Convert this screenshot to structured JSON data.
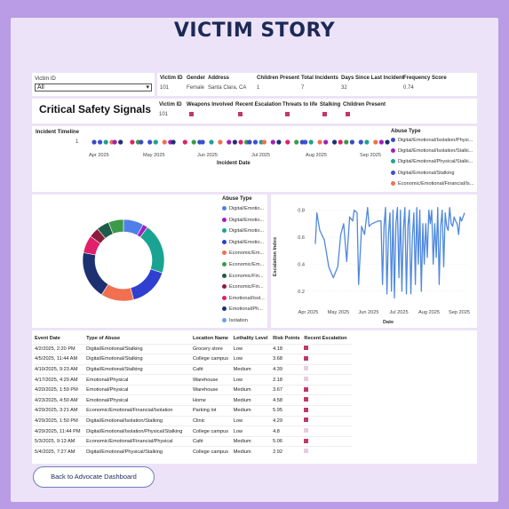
{
  "page": {
    "title": "VICTIM STORY"
  },
  "filter": {
    "label": "Victim ID",
    "selected": "All"
  },
  "profile": {
    "headers": [
      "Victim ID",
      "Gender",
      "Address",
      "Children Present",
      "Total Incidents",
      "Days Since Last Incident",
      "Frequency Score"
    ],
    "values": [
      "101",
      "Female",
      "Santa Clara, CA",
      "1",
      "7",
      "32",
      "0.74"
    ]
  },
  "signals": {
    "title": "Critical Safety Signals",
    "headers": [
      "Victim ID",
      "Weapons Involved",
      "Recent Escalation",
      "Threats to life",
      "Stalking",
      "Children Present"
    ],
    "victim_id": "101"
  },
  "timeline": {
    "title": "Incident Timeline",
    "y_tick": "1",
    "x_ticks": [
      "Apr 2025",
      "May 2025",
      "Jun 2025",
      "Jul 2025",
      "Aug 2025",
      "Sep 2025"
    ],
    "xlabel": "Incident Date",
    "legend_title": "Abuse Type",
    "legend": [
      {
        "label": "Digital/Emotional/Isolation/Physi...",
        "color": "#3b4cc0"
      },
      {
        "label": "Digital/Emotional/Isolation/Stalki...",
        "color": "#a020c0"
      },
      {
        "label": "Digital/Emotional/Physical/Stalki...",
        "color": "#1aa391"
      },
      {
        "label": "Digital/Emotional/Stalking",
        "color": "#3d4fd6"
      },
      {
        "label": "Economic/Emotional/Financial/Is...",
        "color": "#f07050"
      }
    ]
  },
  "donut": {
    "legend_title": "Abuse Type",
    "legend": [
      {
        "label": "Digital/Emotio...",
        "color": "#4f7fe8"
      },
      {
        "label": "Digital/Emotio...",
        "color": "#a020c0"
      },
      {
        "label": "Digital/Emotio...",
        "color": "#1aa391"
      },
      {
        "label": "Digital/Emotio...",
        "color": "#2f3fd0"
      },
      {
        "label": "Economic/Em...",
        "color": "#f07050"
      },
      {
        "label": "Economic/Em...",
        "color": "#3c9a4a"
      },
      {
        "label": "Economic/Fin...",
        "color": "#1d5c4a"
      },
      {
        "label": "Economic/Fin...",
        "color": "#8b1c3c"
      },
      {
        "label": "Emotional/Isol...",
        "color": "#e0206a"
      },
      {
        "label": "Emotional/Ph...",
        "color": "#1d3070"
      },
      {
        "label": "Isolation",
        "color": "#6d9fe6"
      }
    ]
  },
  "chart_data": [
    {
      "type": "pie",
      "labels": [
        "Digital/Emotio...",
        "Digital/Emotio...",
        "Digital/Emotio...",
        "Digital/Emotio...",
        "Economic/Em...",
        "Economic/Em...",
        "Economic/Fin...",
        "Economic/Fin...",
        "Emotional/Isol...",
        "Emotional/Ph...",
        "Isolation"
      ],
      "values": [
        8,
        2,
        20,
        16,
        13,
        6,
        5,
        4,
        7,
        19,
        0
      ]
    },
    {
      "type": "line",
      "ylabel": "Escalation Index",
      "xlabel": "Date",
      "ylim": [
        0.1,
        0.85
      ],
      "yticks": [
        0.2,
        0.4,
        0.6,
        0.8
      ],
      "xticks": [
        "Apr 2025",
        "May 2025",
        "Jun 2025",
        "Jul 2025",
        "Aug 2025",
        "Sep 2025"
      ],
      "points": [
        [
          0.0,
          0.55
        ],
        [
          0.01,
          0.78
        ],
        [
          0.03,
          0.65
        ],
        [
          0.06,
          0.58
        ],
        [
          0.09,
          0.38
        ],
        [
          0.12,
          0.3
        ],
        [
          0.15,
          0.38
        ],
        [
          0.17,
          0.62
        ],
        [
          0.19,
          0.7
        ],
        [
          0.21,
          0.42
        ],
        [
          0.23,
          0.75
        ],
        [
          0.25,
          0.72
        ],
        [
          0.26,
          0.8
        ],
        [
          0.28,
          0.78
        ],
        [
          0.29,
          0.25
        ],
        [
          0.31,
          0.68
        ],
        [
          0.33,
          0.62
        ],
        [
          0.35,
          0.82
        ],
        [
          0.36,
          0.68
        ],
        [
          0.38,
          0.7
        ],
        [
          0.42,
          0.72
        ],
        [
          0.44,
          0.72
        ],
        [
          0.45,
          0.25
        ],
        [
          0.46,
          0.68
        ],
        [
          0.47,
          0.82
        ],
        [
          0.48,
          0.18
        ],
        [
          0.49,
          0.62
        ],
        [
          0.5,
          0.78
        ],
        [
          0.51,
          0.2
        ],
        [
          0.52,
          0.8
        ],
        [
          0.53,
          0.15
        ],
        [
          0.54,
          0.7
        ],
        [
          0.55,
          0.82
        ],
        [
          0.56,
          0.3
        ],
        [
          0.57,
          0.8
        ],
        [
          0.58,
          0.2
        ],
        [
          0.59,
          0.65
        ],
        [
          0.6,
          0.82
        ],
        [
          0.61,
          0.18
        ],
        [
          0.62,
          0.68
        ],
        [
          0.63,
          0.8
        ],
        [
          0.64,
          0.18
        ],
        [
          0.65,
          0.6
        ],
        [
          0.66,
          0.78
        ],
        [
          0.67,
          0.25
        ],
        [
          0.68,
          0.82
        ],
        [
          0.69,
          0.4
        ],
        [
          0.7,
          0.8
        ],
        [
          0.71,
          0.2
        ],
        [
          0.72,
          0.7
        ],
        [
          0.73,
          0.4
        ],
        [
          0.74,
          0.7
        ],
        [
          0.75,
          0.45
        ],
        [
          0.76,
          0.8
        ],
        [
          0.77,
          0.7
        ],
        [
          0.78,
          0.8
        ],
        [
          0.79,
          0.4
        ],
        [
          0.8,
          0.7
        ],
        [
          0.81,
          0.45
        ],
        [
          0.82,
          0.82
        ],
        [
          0.83,
          0.25
        ],
        [
          0.84,
          0.68
        ],
        [
          0.85,
          0.8
        ],
        [
          0.86,
          0.38
        ],
        [
          0.87,
          0.78
        ],
        [
          0.88,
          0.68
        ],
        [
          0.89,
          0.65
        ],
        [
          0.9,
          0.82
        ],
        [
          0.91,
          0.7
        ],
        [
          0.92,
          0.68
        ],
        [
          0.93,
          0.75
        ],
        [
          0.94,
          0.72
        ],
        [
          0.95,
          0.7
        ],
        [
          0.96,
          0.62
        ],
        [
          0.97,
          0.75
        ],
        [
          0.98,
          0.72
        ],
        [
          1.0,
          0.78
        ]
      ]
    }
  ],
  "events": {
    "headers": [
      "Event Date",
      "Type of Abuse",
      "Location Name",
      "Lethality Level",
      "Risk Points",
      "Recent Escalation"
    ],
    "rows": [
      {
        "date": "4/2/2025, 2:20 PM",
        "type": "Digital/Emotional/Stalking",
        "location": "Grocery store",
        "level": "Low",
        "risk": "4.18",
        "esc": true
      },
      {
        "date": "4/5/2025, 11:44 AM",
        "type": "Digital/Emotional/Stalking",
        "location": "College campus",
        "level": "Low",
        "risk": "3.68",
        "esc": true
      },
      {
        "date": "4/10/2025, 9:23 AM",
        "type": "Digital/Emotional/Stalking",
        "location": "Café",
        "level": "Medium",
        "risk": "4.39",
        "esc": false
      },
      {
        "date": "4/17/2025, 4:29 AM",
        "type": "Emotional/Physical",
        "location": "Warehouse",
        "level": "Low",
        "risk": "2.18",
        "esc": false
      },
      {
        "date": "4/20/2025, 1:59 PM",
        "type": "Emotional/Physical",
        "location": "Warehouse",
        "level": "Medium",
        "risk": "3.67",
        "esc": true
      },
      {
        "date": "4/23/2025, 4:50 AM",
        "type": "Emotional/Physical",
        "location": "Home",
        "level": "Medium",
        "risk": "4.58",
        "esc": true
      },
      {
        "date": "4/29/2025, 3:21 AM",
        "type": "Economic/Emotional/Financial/Isolation",
        "location": "Parking lot",
        "level": "Medium",
        "risk": "5.95",
        "esc": true
      },
      {
        "date": "4/29/2025, 1:50 PM",
        "type": "Digital/Emotional/Isolation/Stalking",
        "location": "Clinic",
        "level": "Low",
        "risk": "4.29",
        "esc": true
      },
      {
        "date": "4/29/2025, 11:44 PM",
        "type": "Digital/Emotional/Isolation/Physical/Stalking",
        "location": "College campus",
        "level": "Low",
        "risk": "4.8",
        "esc": false
      },
      {
        "date": "5/3/2025, 9:13 AM",
        "type": "Economic/Emotional/Financial/Physical",
        "location": "Café",
        "level": "Medium",
        "risk": "5.06",
        "esc": true
      },
      {
        "date": "5/4/2025, 7:27 AM",
        "type": "Digital/Emotional/Physical/Stalking",
        "location": "College campus",
        "level": "Medium",
        "risk": "2.92",
        "esc": false
      }
    ]
  },
  "nav": {
    "back_label": "Back to Advocate Dashboard"
  }
}
